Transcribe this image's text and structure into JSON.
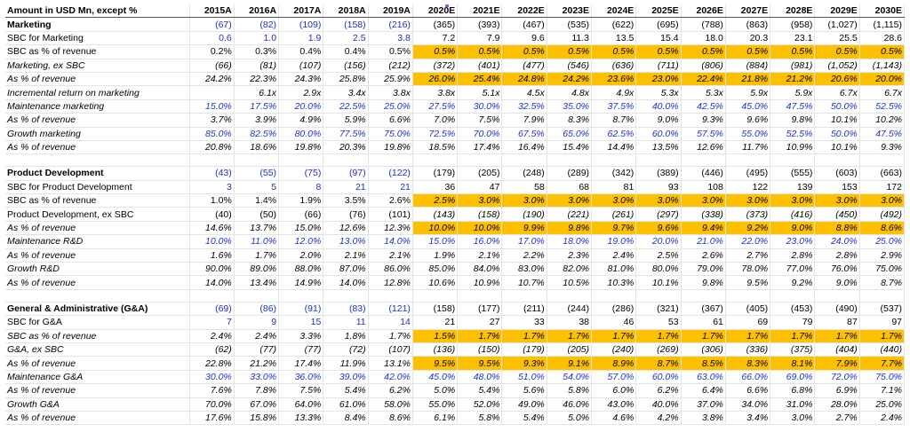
{
  "header": {
    "title": "Amount in USD Mn, except %",
    "years": [
      "2015A",
      "2016A",
      "2017A",
      "2018A",
      "2019A",
      "2020E",
      "2021E",
      "2022E",
      "2023E",
      "2024E",
      "2025E",
      "2026E",
      "2027E",
      "2028E",
      "2029E",
      "2030E"
    ]
  },
  "colors": {
    "highlight": "#ffc000",
    "input_blue": "#1f2fcc"
  },
  "sections": [
    {
      "rows": [
        {
          "label": "Marketing",
          "bold": true,
          "values": [
            "(67)",
            "(82)",
            "(109)",
            "(158)",
            "(216)",
            "(365)",
            "(393)",
            "(467)",
            "(535)",
            "(622)",
            "(695)",
            "(788)",
            "(863)",
            "(958)",
            "(1,027)",
            "(1,115)"
          ],
          "blue_until": 5
        },
        {
          "label": "SBC for Marketing",
          "values": [
            "0.6",
            "1.0",
            "1.9",
            "2.5",
            "3.8",
            "7.2",
            "7.9",
            "9.6",
            "11.3",
            "13.5",
            "15.4",
            "18.0",
            "20.3",
            "23.1",
            "25.5",
            "28.6"
          ],
          "blue_until": 5
        },
        {
          "label": "SBC as % of revenue",
          "values": [
            "0.2%",
            "0.3%",
            "0.4%",
            "0.4%",
            "0.5%",
            "0.5%",
            "0.5%",
            "0.5%",
            "0.5%",
            "0.5%",
            "0.5%",
            "0.5%",
            "0.5%",
            "0.5%",
            "0.5%",
            "0.5%"
          ],
          "hl_from": 5,
          "ital_from": 5
        },
        {
          "label": "Marketing, ex SBC",
          "italic": true,
          "values": [
            "(66)",
            "(81)",
            "(107)",
            "(156)",
            "(212)",
            "(372)",
            "(401)",
            "(477)",
            "(546)",
            "(636)",
            "(711)",
            "(806)",
            "(884)",
            "(981)",
            "(1,052)",
            "(1,143)"
          ]
        },
        {
          "label": "As % of revenue",
          "italic": true,
          "values": [
            "24.2%",
            "22.3%",
            "24.3%",
            "25.8%",
            "25.9%",
            "26.0%",
            "25.4%",
            "24.8%",
            "24.2%",
            "23.6%",
            "23.0%",
            "22.4%",
            "21.8%",
            "21.2%",
            "20.6%",
            "20.0%"
          ],
          "hl_from": 5
        },
        {
          "label": "Incremental return on marketing",
          "italic": true,
          "values": [
            "",
            "6.1x",
            "2.9x",
            "3.4x",
            "3.8x",
            "3.8x",
            "5.1x",
            "4.5x",
            "4.8x",
            "4.9x",
            "5.3x",
            "5.3x",
            "5.9x",
            "5.9x",
            "6.7x",
            "6.7x"
          ]
        },
        {
          "label": "Maintenance marketing",
          "italic": true,
          "values": [
            "15.0%",
            "17.5%",
            "20.0%",
            "22.5%",
            "25.0%",
            "27.5%",
            "30.0%",
            "32.5%",
            "35.0%",
            "37.5%",
            "40.0%",
            "42.5%",
            "45.0%",
            "47.5%",
            "50.0%",
            "52.5%"
          ],
          "blue_until": 16
        },
        {
          "label": "As % of revenue",
          "italic": true,
          "values": [
            "3.7%",
            "3.9%",
            "4.9%",
            "5.9%",
            "6.6%",
            "7.0%",
            "7.5%",
            "7.9%",
            "8.3%",
            "8.7%",
            "9.0%",
            "9.3%",
            "9.6%",
            "9.8%",
            "10.1%",
            "10.2%"
          ]
        },
        {
          "label": "Growth marketing",
          "italic": true,
          "values": [
            "85.0%",
            "82.5%",
            "80.0%",
            "77.5%",
            "75.0%",
            "72.5%",
            "70.0%",
            "67.5%",
            "65.0%",
            "62.5%",
            "60.0%",
            "57.5%",
            "55.0%",
            "52.5%",
            "50.0%",
            "47.5%"
          ],
          "blue_until": 16
        },
        {
          "label": "As % of revenue",
          "italic": true,
          "values": [
            "20.8%",
            "18.6%",
            "19.8%",
            "20.3%",
            "19.8%",
            "18.5%",
            "17.4%",
            "16.4%",
            "15.4%",
            "14.4%",
            "13.5%",
            "12.6%",
            "11.7%",
            "10.9%",
            "10.1%",
            "9.3%"
          ]
        }
      ]
    },
    {
      "rows": [
        {
          "label": "Product Development",
          "bold": true,
          "values": [
            "(43)",
            "(55)",
            "(75)",
            "(97)",
            "(122)",
            "(179)",
            "(205)",
            "(248)",
            "(289)",
            "(342)",
            "(389)",
            "(446)",
            "(495)",
            "(555)",
            "(603)",
            "(663)"
          ],
          "blue_until": 5
        },
        {
          "label": "SBC for Product Development",
          "values": [
            "3",
            "5",
            "8",
            "21",
            "21",
            "36",
            "47",
            "58",
            "68",
            "81",
            "93",
            "108",
            "122",
            "139",
            "153",
            "172"
          ],
          "blue_until": 5
        },
        {
          "label": "SBC as % of revenue",
          "values": [
            "1.0%",
            "1.4%",
            "1.9%",
            "3.5%",
            "2.6%",
            "2.5%",
            "3.0%",
            "3.0%",
            "3.0%",
            "3.0%",
            "3.0%",
            "3.0%",
            "3.0%",
            "3.0%",
            "3.0%",
            "3.0%"
          ],
          "hl_from": 5,
          "ital_from": 5
        },
        {
          "label": "Product Development, ex SBC",
          "values": [
            "(40)",
            "(50)",
            "(66)",
            "(76)",
            "(101)",
            "(143)",
            "(158)",
            "(190)",
            "(221)",
            "(261)",
            "(297)",
            "(338)",
            "(373)",
            "(416)",
            "(450)",
            "(492)"
          ],
          "ital_from": 5
        },
        {
          "label": "As % of revenue",
          "italic": true,
          "values": [
            "14.6%",
            "13.7%",
            "15.0%",
            "12.6%",
            "12.3%",
            "10.0%",
            "10.0%",
            "9.9%",
            "9.8%",
            "9.7%",
            "9.6%",
            "9.4%",
            "9.2%",
            "9.0%",
            "8.8%",
            "8.6%"
          ],
          "hl_from": 5
        },
        {
          "label": "Maintenance R&D",
          "italic": true,
          "values": [
            "10.0%",
            "11.0%",
            "12.0%",
            "13.0%",
            "14.0%",
            "15.0%",
            "16.0%",
            "17.0%",
            "18.0%",
            "19.0%",
            "20.0%",
            "21.0%",
            "22.0%",
            "23.0%",
            "24.0%",
            "25.0%"
          ],
          "blue_until": 16
        },
        {
          "label": "As % of revenue",
          "italic": true,
          "values": [
            "1.6%",
            "1.7%",
            "2.0%",
            "2.1%",
            "2.1%",
            "1.9%",
            "2.1%",
            "2.2%",
            "2.3%",
            "2.4%",
            "2.5%",
            "2.6%",
            "2.7%",
            "2.8%",
            "2.8%",
            "2.9%"
          ]
        },
        {
          "label": "Growth R&D",
          "italic": true,
          "values": [
            "90.0%",
            "89.0%",
            "88.0%",
            "87.0%",
            "86.0%",
            "85.0%",
            "84.0%",
            "83.0%",
            "82.0%",
            "81.0%",
            "80.0%",
            "79.0%",
            "78.0%",
            "77.0%",
            "76.0%",
            "75.0%"
          ]
        },
        {
          "label": "As % of revenue",
          "italic": true,
          "values": [
            "14.0%",
            "13.4%",
            "14.9%",
            "14.0%",
            "12.8%",
            "10.6%",
            "10.9%",
            "10.7%",
            "10.5%",
            "10.3%",
            "10.1%",
            "9.8%",
            "9.5%",
            "9.2%",
            "9.0%",
            "8.7%"
          ]
        }
      ]
    },
    {
      "rows": [
        {
          "label": "General & Administrative (G&A)",
          "bold": true,
          "values": [
            "(69)",
            "(86)",
            "(91)",
            "(83)",
            "(121)",
            "(158)",
            "(177)",
            "(211)",
            "(244)",
            "(286)",
            "(321)",
            "(367)",
            "(405)",
            "(453)",
            "(490)",
            "(537)"
          ],
          "blue_until": 5
        },
        {
          "label": "SBC for G&A",
          "values": [
            "7",
            "9",
            "15",
            "11",
            "14",
            "21",
            "27",
            "33",
            "38",
            "46",
            "53",
            "61",
            "69",
            "79",
            "87",
            "97"
          ],
          "blue_until": 5
        },
        {
          "label": "SBC as % of revenue",
          "italic": true,
          "values": [
            "2.4%",
            "2.4%",
            "3.3%",
            "1.8%",
            "1.7%",
            "1.5%",
            "1.7%",
            "1.7%",
            "1.7%",
            "1.7%",
            "1.7%",
            "1.7%",
            "1.7%",
            "1.7%",
            "1.7%",
            "1.7%"
          ],
          "hl_from": 5
        },
        {
          "label": "G&A, ex SBC",
          "italic": true,
          "values": [
            "(62)",
            "(77)",
            "(77)",
            "(72)",
            "(107)",
            "(136)",
            "(150)",
            "(179)",
            "(205)",
            "(240)",
            "(269)",
            "(306)",
            "(336)",
            "(375)",
            "(404)",
            "(440)"
          ]
        },
        {
          "label": "As % of revenue",
          "italic": true,
          "values": [
            "22.8%",
            "21.2%",
            "17.4%",
            "11.9%",
            "13.1%",
            "9.5%",
            "9.5%",
            "9.3%",
            "9.1%",
            "8.9%",
            "8.7%",
            "8.5%",
            "8.3%",
            "8.1%",
            "7.9%",
            "7.7%"
          ],
          "hl_from": 5
        },
        {
          "label": "Maintenance G&A",
          "italic": true,
          "values": [
            "30.0%",
            "33.0%",
            "36.0%",
            "39.0%",
            "42.0%",
            "45.0%",
            "48.0%",
            "51.0%",
            "54.0%",
            "57.0%",
            "60.0%",
            "63.0%",
            "66.0%",
            "69.0%",
            "72.0%",
            "75.0%"
          ],
          "blue_until": 16
        },
        {
          "label": "As % of revenue",
          "italic": true,
          "values": [
            "7.6%",
            "7.8%",
            "7.5%",
            "5.4%",
            "6.2%",
            "5.0%",
            "5.4%",
            "5.6%",
            "5.8%",
            "6.0%",
            "6.2%",
            "6.4%",
            "6.6%",
            "6.8%",
            "6.9%",
            "7.1%"
          ]
        },
        {
          "label": "Growth G&A",
          "italic": true,
          "values": [
            "70.0%",
            "67.0%",
            "64.0%",
            "61.0%",
            "58.0%",
            "55.0%",
            "52.0%",
            "49.0%",
            "46.0%",
            "43.0%",
            "40.0%",
            "37.0%",
            "34.0%",
            "31.0%",
            "28.0%",
            "25.0%"
          ]
        },
        {
          "label": "As % of revenue",
          "italic": true,
          "values": [
            "17.6%",
            "15.8%",
            "13.3%",
            "8.4%",
            "8.6%",
            "6.1%",
            "5.8%",
            "5.4%",
            "5.0%",
            "4.6%",
            "4.2%",
            "3.8%",
            "3.4%",
            "3.0%",
            "2.7%",
            "2.4%"
          ]
        }
      ]
    }
  ]
}
